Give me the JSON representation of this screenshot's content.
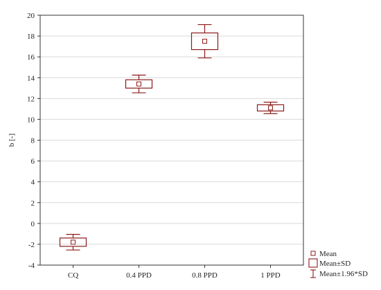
{
  "chart_data": {
    "type": "box",
    "title": "",
    "xlabel": "",
    "ylabel": "b [-]",
    "ylim": [
      -4,
      20
    ],
    "yticks": [
      -4,
      -2,
      0,
      2,
      4,
      6,
      8,
      10,
      12,
      14,
      16,
      18,
      20
    ],
    "grid": true,
    "legend_position": "bottom-right",
    "categories": [
      "CQ",
      "0.4 PPD",
      "0.8 PPD",
      "1 PPD"
    ],
    "series": [
      {
        "category": "CQ",
        "mean": -1.8,
        "sd": 0.4,
        "ci196": 0.75
      },
      {
        "category": "0.4 PPD",
        "mean": 13.4,
        "sd": 0.4,
        "ci196": 0.85
      },
      {
        "category": "0.8 PPD",
        "mean": 17.5,
        "sd": 0.8,
        "ci196": 1.6
      },
      {
        "category": "1 PPD",
        "mean": 11.1,
        "sd": 0.3,
        "ci196": 0.55
      }
    ],
    "legend": [
      "Mean",
      "Mean±SD",
      "Mean±1.96*SD"
    ],
    "color": "#8b1a1a"
  }
}
